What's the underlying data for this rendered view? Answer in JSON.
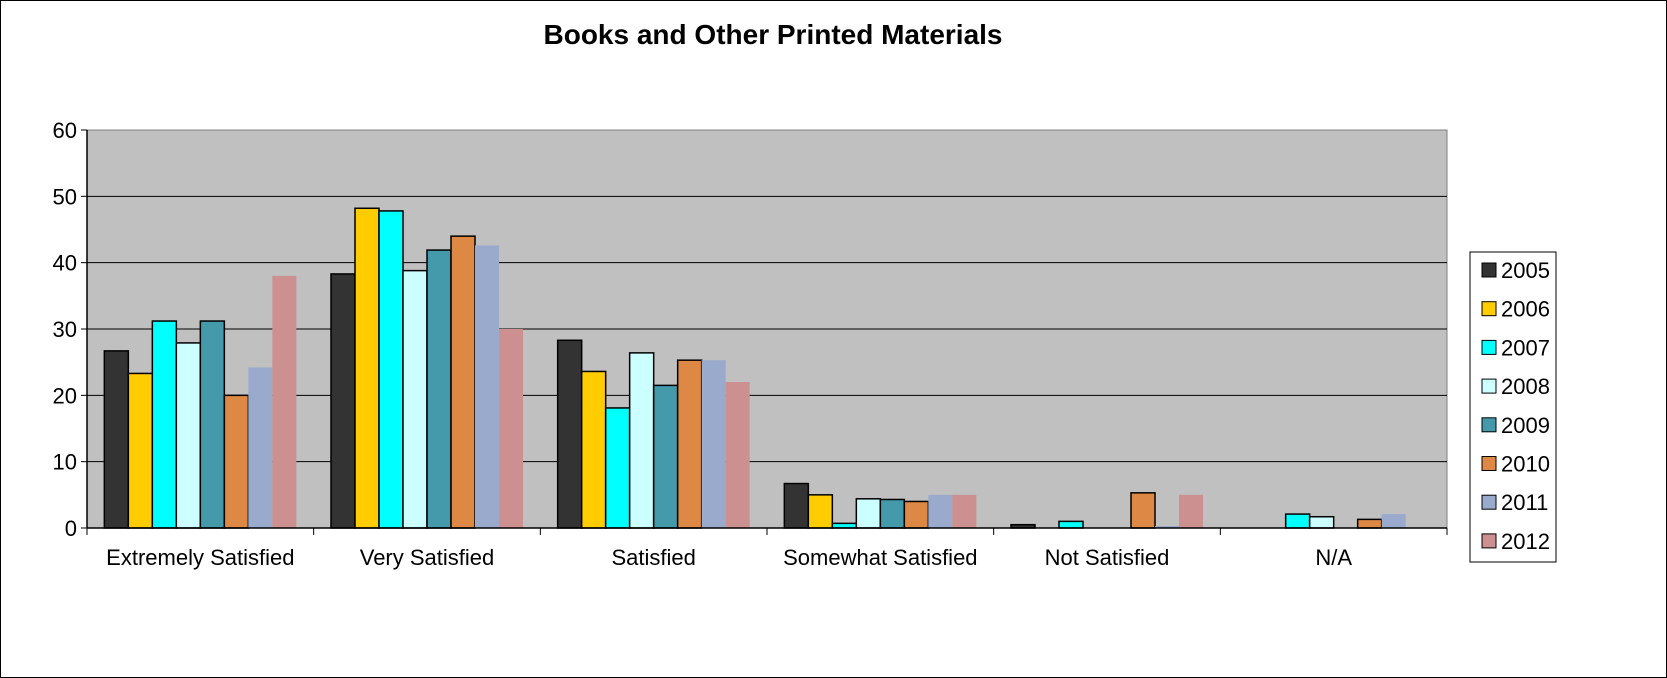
{
  "chart_data": {
    "type": "bar",
    "title": "Books and Other Printed Materials",
    "xlabel": "",
    "ylabel": "",
    "ylim": [
      0,
      60
    ],
    "yticks": [
      0,
      10,
      20,
      30,
      40,
      50,
      60
    ],
    "grid": true,
    "legend_position": "right",
    "categories": [
      "Extremely Satisfied",
      "Very Satisfied",
      "Satisfied",
      "Somewhat Satisfied",
      "Not Satisfied",
      "N/A"
    ],
    "series": [
      {
        "name": "2005",
        "color": "#333333",
        "values": [
          26.7,
          38.3,
          28.3,
          6.7,
          0.5,
          0
        ]
      },
      {
        "name": "2006",
        "color": "#FFCC00",
        "values": [
          23.3,
          48.2,
          23.6,
          5.0,
          0,
          0
        ]
      },
      {
        "name": "2007",
        "color": "#00FFFF",
        "values": [
          31.2,
          47.8,
          18.1,
          0.7,
          1.0,
          2.1
        ]
      },
      {
        "name": "2008",
        "color": "#CCFFFF",
        "values": [
          27.9,
          38.8,
          26.4,
          4.4,
          0,
          1.7
        ]
      },
      {
        "name": "2009",
        "color": "#4499AA",
        "values": [
          31.2,
          41.9,
          21.5,
          4.3,
          0,
          0
        ]
      },
      {
        "name": "2010",
        "color": "#DD8844",
        "values": [
          20.0,
          44.0,
          25.3,
          4.0,
          5.3,
          1.3
        ]
      },
      {
        "name": "2011",
        "color": "#99AACC",
        "values": [
          24.2,
          42.6,
          25.3,
          5.0,
          0.3,
          2.1
        ]
      },
      {
        "name": "2012",
        "color": "#CC9090",
        "values": [
          38.0,
          30.0,
          22.0,
          5.0,
          5.0,
          0
        ]
      }
    ]
  }
}
